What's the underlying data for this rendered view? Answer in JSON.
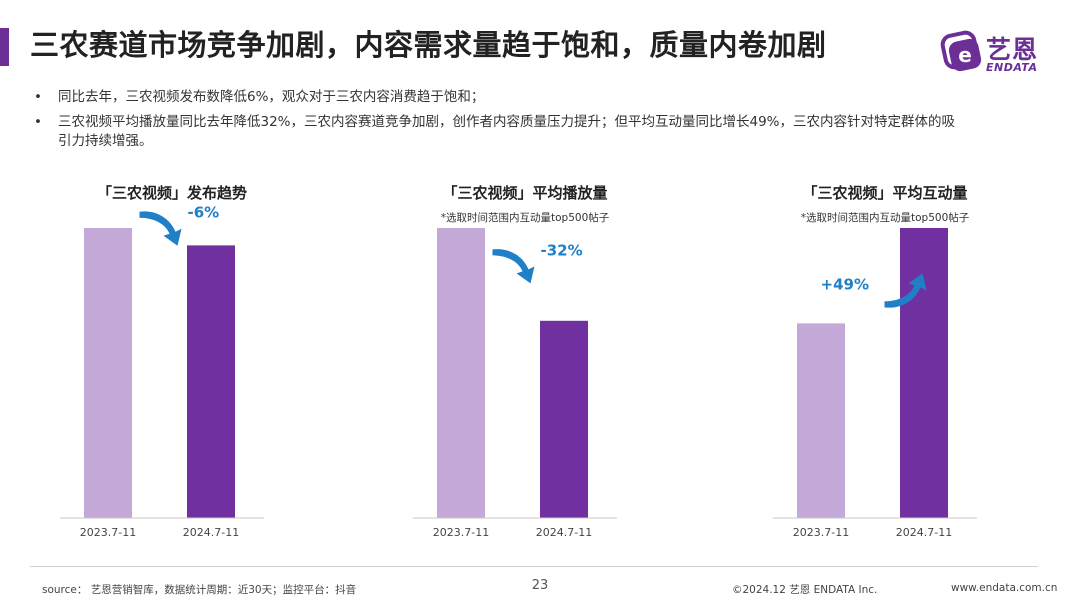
{
  "header": {
    "title": "三农赛道市场竞争加剧，内容需求量趋于饱和，质量内卷加剧"
  },
  "logo": {
    "cn": "艺恩",
    "en": "ENDATA",
    "mark_letter": "e"
  },
  "bullets": [
    {
      "marker": "•",
      "text": "同比去年，三农视频发布数降低6%，观众对于三农内容消费趋于饱和；"
    },
    {
      "marker": "•",
      "text": "三农视频平均播放量同比去年降低32%，三农内容赛道竞争加剧，创作者内容质量压力提升；但平均互动量同比增长49%，三农内容针对特定群体的吸引力持续增强。"
    }
  ],
  "colors": {
    "accent": "#6b2f96",
    "bar_light": "#c3a8d8",
    "bar_dark": "#7030a0",
    "arrow": "#1f7fc7"
  },
  "chart_data": [
    {
      "type": "bar",
      "title": "「三农视频」发布趋势",
      "note": "",
      "categories": [
        "2023.7-11",
        "2024.7-11"
      ],
      "values": [
        100,
        94
      ],
      "ylim": [
        0,
        100
      ],
      "change_label": "-6%",
      "trend": "down"
    },
    {
      "type": "bar",
      "title": "「三农视频」平均播放量",
      "note": "*选取时间范围内互动量top500帖子",
      "categories": [
        "2023.7-11",
        "2024.7-11"
      ],
      "values": [
        100,
        68
      ],
      "ylim": [
        0,
        100
      ],
      "change_label": "-32%",
      "trend": "down"
    },
    {
      "type": "bar",
      "title": "「三农视频」平均互动量",
      "note": "*选取时间范围内互动量top500帖子",
      "categories": [
        "2023.7-11",
        "2024.7-11"
      ],
      "values": [
        100,
        149
      ],
      "ylim": [
        0,
        149
      ],
      "change_label": "+49%",
      "trend": "up"
    }
  ],
  "footer": {
    "source": "source： 艺恩营销智库，数据统计周期：近30天；监控平台：抖音",
    "page": "23",
    "copyright": "©2024.12  艺恩 ENDATA Inc.",
    "website": "www.endata.com.cn"
  }
}
